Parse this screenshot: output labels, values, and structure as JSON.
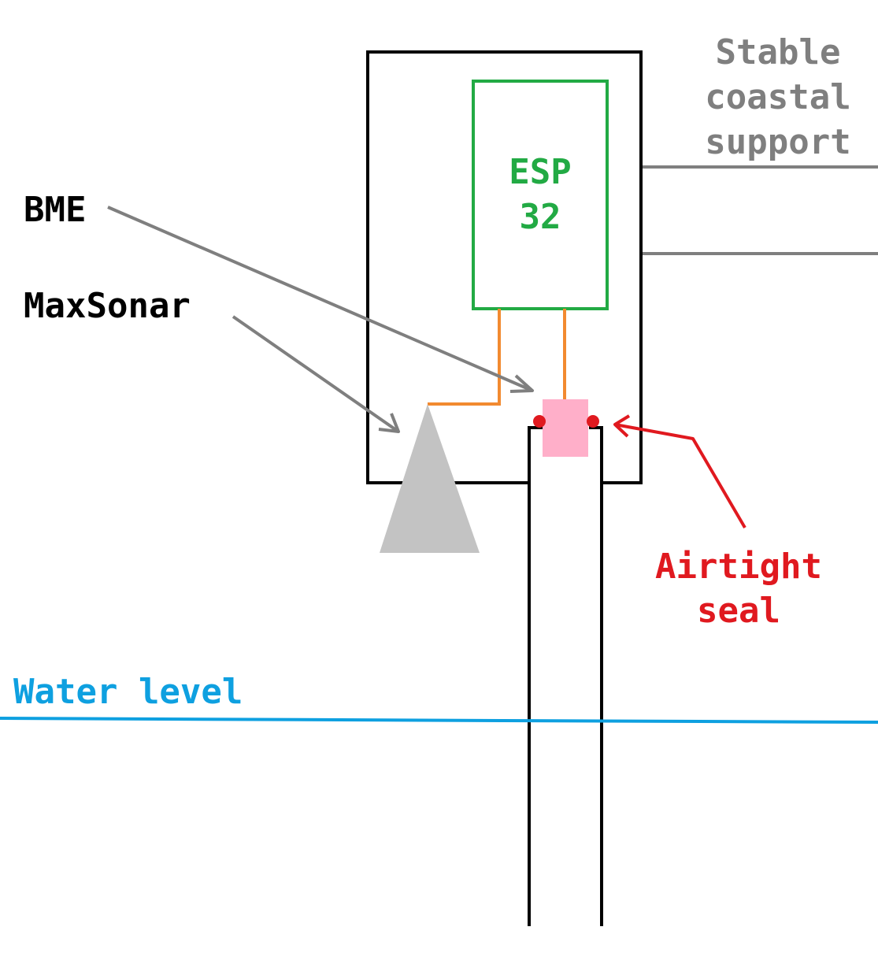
{
  "labels": {
    "support_line1": "Stable",
    "support_line2": "coastal",
    "support_line3": "support",
    "esp_line1": "ESP",
    "esp_line2": "32",
    "bme": "BME",
    "maxsonar": "MaxSonar",
    "seal_line1": "Airtight",
    "seal_line2": "seal",
    "water_level": "Water level"
  },
  "colors": {
    "enclosure": "#000000",
    "esp32_board": "#22aa44",
    "wire": "#f28a30",
    "sensor_cone": "#c3c3c3",
    "bme_sensor": "#ffafc9",
    "seal_dots": "#e0191f",
    "seal_label": "#e0191f",
    "pointer_arrows": "#7f7f7f",
    "support": "#7f7f7f",
    "water": "#0ea0e0",
    "labels": "#000000"
  }
}
